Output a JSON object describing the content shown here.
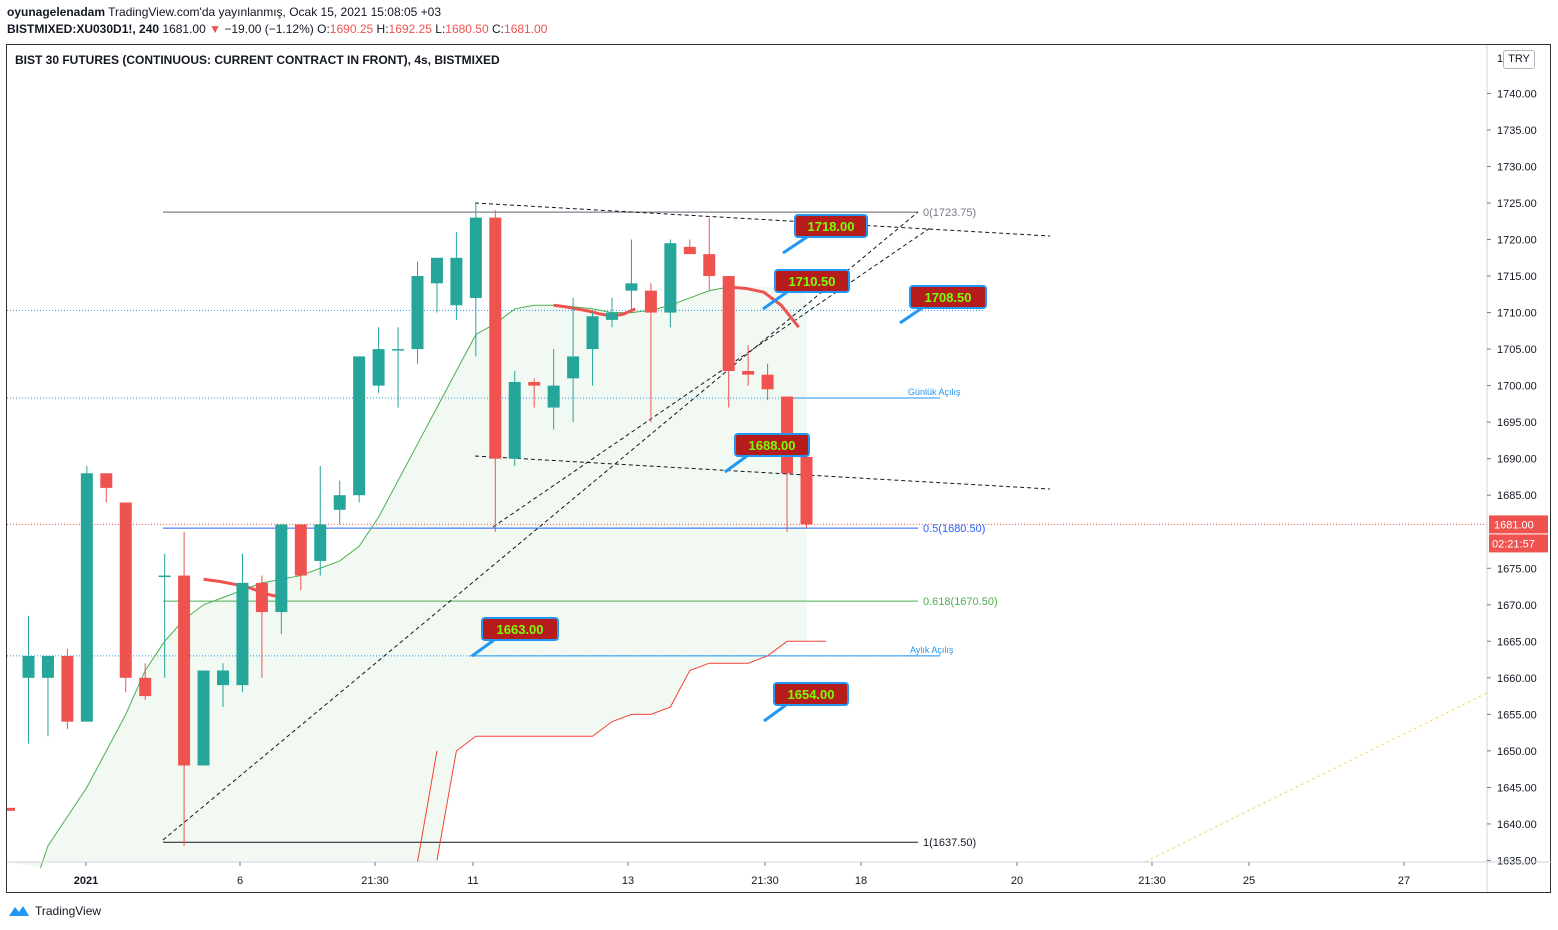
{
  "header": {
    "author": "oyunagelenadam",
    "published_text": "TradingView.com'da yayınlanmış, Ocak 15, 2021 15:08:05 +03",
    "symbol": "BISTMIXED:XU030D1!, 240",
    "last": "1681.00",
    "change_arrow": "▼",
    "change": "−19.00 (−1.12%)",
    "o_label": "O:",
    "o_value": "1690.25",
    "h_label": "H:",
    "h_value": "1692.25",
    "l_label": "L:",
    "l_value": "1680.50",
    "c_label": "C:",
    "c_value": "1681.00"
  },
  "footer": {
    "brand": "TradingView"
  },
  "currency": "TRY",
  "colors": {
    "up": "#26a69a",
    "down": "#ef5350",
    "callout_bg": "#b71c1c",
    "callout_border": "#2196f3",
    "callout_text": "#76ff03",
    "ma": "#4caf50",
    "baseline": "#f44336"
  },
  "chart_data": {
    "type": "candlestick",
    "title": "BIST 30 FUTURES (CONTINUOUS: CURRENT CONTRACT IN FRONT), 4s, BISTMIXED",
    "y_range": [
      1634,
      1748
    ],
    "y_ticks": [
      "1740.00",
      "1735.00",
      "1730.00",
      "1725.00",
      "1720.00",
      "1715.00",
      "1710.00",
      "1705.00",
      "1700.00",
      "1695.00",
      "1690.00",
      "1685.00",
      "1675.00",
      "1670.00",
      "1665.00",
      "1660.00",
      "1655.00",
      "1650.00",
      "1645.00",
      "1640.00",
      "1635.00"
    ],
    "x_ticks": [
      "2021",
      "6",
      "21:30",
      "11",
      "13",
      "21:30",
      "18",
      "20",
      "21:30",
      "25",
      "27"
    ],
    "candles": [
      [
        1660,
        1668.5,
        1651,
        1663
      ],
      [
        1660,
        1663,
        1652,
        1663
      ],
      [
        1663,
        1664,
        1653,
        1654
      ],
      [
        1654,
        1689,
        1654,
        1688
      ],
      [
        1688,
        1688,
        1684,
        1686
      ],
      [
        1684,
        1684,
        1658,
        1660
      ],
      [
        1660,
        1662,
        1657,
        1657.5
      ],
      [
        1674,
        1677,
        1660,
        1674
      ],
      [
        1674,
        1680,
        1637,
        1648
      ],
      [
        1648,
        1661,
        1648,
        1661
      ],
      [
        1659,
        1662,
        1656,
        1661
      ],
      [
        1659,
        1677,
        1658,
        1673
      ],
      [
        1673,
        1674,
        1660,
        1669
      ],
      [
        1669,
        1681,
        1666,
        1681
      ],
      [
        1681,
        1681,
        1672,
        1674
      ],
      [
        1676,
        1689,
        1674,
        1681
      ],
      [
        1683,
        1687,
        1681,
        1685
      ],
      [
        1685,
        1704,
        1684,
        1704
      ],
      [
        1700,
        1708,
        1699,
        1705
      ],
      [
        1705,
        1708,
        1697,
        1705
      ],
      [
        1705,
        1717,
        1703,
        1715
      ],
      [
        1714,
        1717,
        1710,
        1717.5
      ],
      [
        1711,
        1721,
        1709,
        1717.5
      ],
      [
        1712,
        1725,
        1704,
        1723
      ],
      [
        1723,
        1724,
        1680,
        1690
      ],
      [
        1690,
        1702,
        1689,
        1700.5
      ],
      [
        1700.5,
        1701,
        1697,
        1700
      ],
      [
        1697,
        1705,
        1694,
        1700
      ],
      [
        1701,
        1712,
        1695,
        1704
      ],
      [
        1705,
        1710,
        1700,
        1709.5
      ],
      [
        1709,
        1712,
        1708,
        1710
      ],
      [
        1713,
        1720,
        1710,
        1714
      ],
      [
        1713,
        1714,
        1695,
        1710
      ],
      [
        1710,
        1720,
        1708,
        1719.5
      ],
      [
        1719,
        1720,
        1718,
        1718
      ],
      [
        1718,
        1723,
        1713,
        1715
      ],
      [
        1715,
        1715,
        1697,
        1702
      ],
      [
        1702,
        1705.5,
        1700,
        1701.5
      ],
      [
        1701.5,
        1703,
        1698,
        1699.5
      ],
      [
        1698.5,
        1698.5,
        1680,
        1688
      ],
      [
        1690.25,
        1692.25,
        1680.5,
        1681
      ]
    ],
    "ma_values": [
      1634,
      1637,
      1641,
      1645,
      1650,
      1655,
      1661,
      1665,
      1668,
      1670,
      1671,
      1672,
      1673,
      1673.5,
      1674,
      1675,
      1676,
      1678,
      1682,
      1687,
      1692,
      1697,
      1702,
      1707,
      1708.5,
      1710.5,
      1711,
      1711,
      1710.8,
      1710.5,
      1710,
      1710,
      1710.3,
      1711,
      1712,
      1713,
      1713.5
    ],
    "red_ma_values": [
      1673.5,
      1673.2,
      1672.8,
      1672.3,
      1671.5,
      1671
    ],
    "red_ma_right_values": [
      1711,
      1710.8,
      1710.5,
      1710.2,
      1709.8,
      1709.5,
      1709.8,
      1710.5
    ],
    "red_ma_tail_values": [
      1713.5,
      1713.3,
      1712.8,
      1711,
      1708
    ],
    "lower_band_values": [
      1635,
      1650,
      1652,
      1652,
      1652,
      1652,
      1652,
      1652,
      1652,
      1654,
      1655,
      1655,
      1656,
      1661,
      1662,
      1662,
      1662,
      1663,
      1665,
      1665,
      1665
    ],
    "fib_levels": [
      {
        "label": "0(1723.75)",
        "value": 1723.75,
        "color": "#787b86"
      },
      {
        "label": "0.5(1680.50)",
        "value": 1680.5,
        "color": "#2962ff"
      },
      {
        "label": "0.618(1670.50)",
        "value": 1670.5,
        "color": "#4caf50"
      },
      {
        "label": "1(1637.50)",
        "value": 1637.5,
        "color": "#131722"
      }
    ],
    "horizontal_lines": [
      {
        "label": "",
        "value": 1710.3
      },
      {
        "label": "Günlük Açılış",
        "value": 1698.3
      },
      {
        "label": "Aylık Açılış",
        "value": 1663
      }
    ],
    "callouts": [
      "1718.00",
      "1710.50",
      "1708.50",
      "1688.00",
      "1663.00",
      "1654.00"
    ],
    "last_price_label": "1681.00",
    "countdown_label": "02:21:57",
    "partial_tick": "1"
  }
}
